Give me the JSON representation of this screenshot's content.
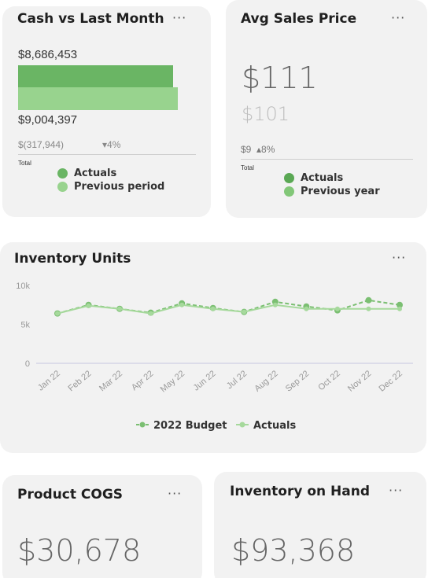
{
  "colors": {
    "actuals": "#6ab564",
    "previous": "#98d38e",
    "budget_line": "#7bbf72",
    "actuals_line": "#a6d99c"
  },
  "cash": {
    "title": "Cash vs Last Month",
    "more": "···",
    "current_value": "$8,686,453",
    "previous_value": "$9,004,397",
    "current_bar": 8686453,
    "previous_bar": 9004397,
    "diff": "$(317,944)",
    "pct": "▾4%",
    "total_label": "Total",
    "legend": [
      "Actuals",
      "Previous period"
    ]
  },
  "avg_price": {
    "title": "Avg Sales Price",
    "more": "···",
    "value": "$111",
    "previous": "$101",
    "diff": "$9",
    "pct": "▴8%",
    "total_label": "Total",
    "legend": [
      "Actuals",
      "Previous year"
    ]
  },
  "inventory_units": {
    "title": "Inventory Units",
    "more": "···"
  },
  "chart_data": {
    "type": "line",
    "title": "Inventory Units",
    "categories": [
      "Jan 22",
      "Feb 22",
      "Mar 22",
      "Apr 22",
      "May 22",
      "Jun 22",
      "Jul 22",
      "Aug 22",
      "Sep 22",
      "Oct 22",
      "Nov 22",
      "Dec 22"
    ],
    "yticks": [
      "10k",
      "5k",
      "0"
    ],
    "ylim": [
      0,
      10000
    ],
    "series": [
      {
        "name": "2022 Budget",
        "values": [
          6400,
          7500,
          7000,
          6500,
          7700,
          7100,
          6600,
          7900,
          7300,
          6800,
          8100,
          7500
        ]
      },
      {
        "name": "Actuals",
        "values": [
          6400,
          7400,
          7000,
          6400,
          7500,
          7000,
          6600,
          7500,
          7000,
          7000,
          7000,
          7000
        ]
      }
    ],
    "legend_position": "bottom"
  },
  "cogs": {
    "title": "Product COGS",
    "more": "···",
    "value": "$30,678"
  },
  "inventory_hand": {
    "title": "Inventory on Hand",
    "more": "···",
    "value": "$93,368"
  }
}
